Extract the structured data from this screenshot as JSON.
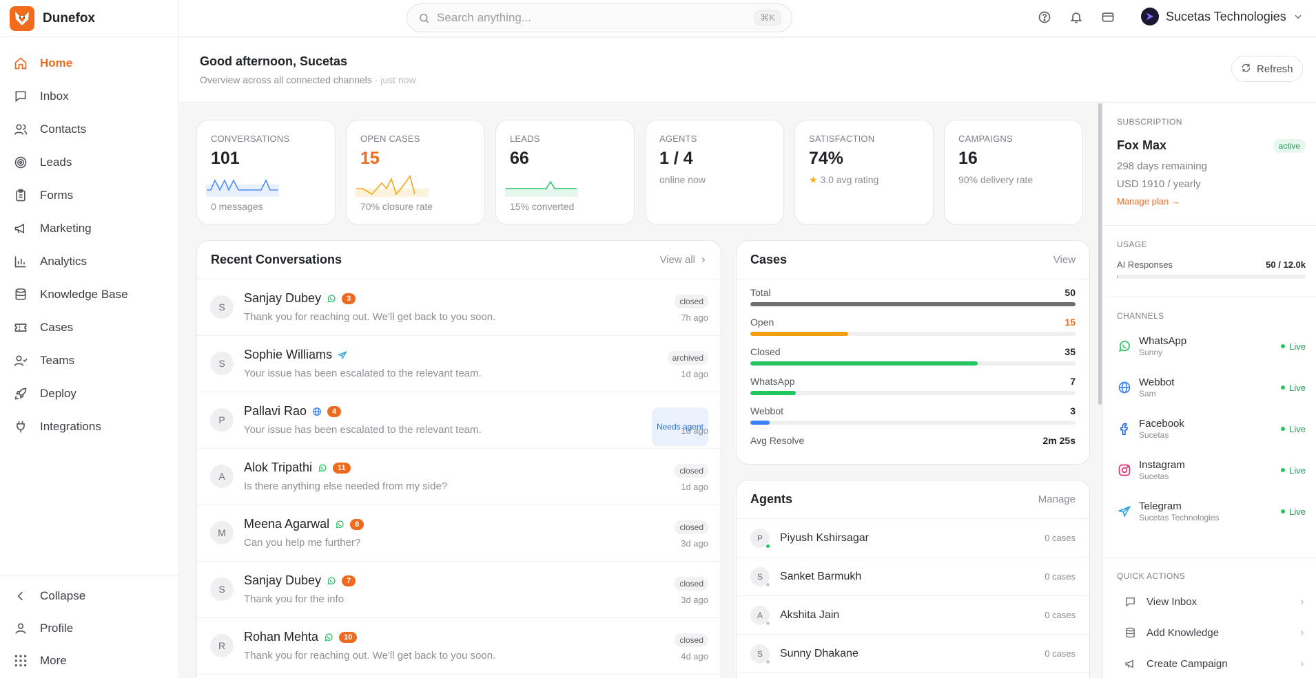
{
  "app": {
    "name": "Dunefox"
  },
  "sidebar": {
    "items": [
      {
        "label": "Home",
        "icon": "home-icon"
      },
      {
        "label": "Inbox",
        "icon": "message-icon"
      },
      {
        "label": "Contacts",
        "icon": "users-icon"
      },
      {
        "label": "Leads",
        "icon": "target-icon"
      },
      {
        "label": "Forms",
        "icon": "clipboard-icon"
      },
      {
        "label": "Marketing",
        "icon": "megaphone-icon"
      },
      {
        "label": "Analytics",
        "icon": "bar-chart-icon"
      },
      {
        "label": "Knowledge Base",
        "icon": "database-icon"
      },
      {
        "label": "Cases",
        "icon": "ticket-icon"
      },
      {
        "label": "Teams",
        "icon": "team-icon"
      },
      {
        "label": "Deploy",
        "icon": "rocket-icon"
      },
      {
        "label": "Integrations",
        "icon": "plug-icon"
      }
    ],
    "footer": [
      {
        "label": "Collapse",
        "icon": "chevron-left-icon"
      },
      {
        "label": "Profile",
        "icon": "user-icon"
      },
      {
        "label": "More",
        "icon": "grid-icon"
      }
    ]
  },
  "topbar": {
    "search_placeholder": "Search anything...",
    "shortcut": "⌘K",
    "org_name": "Sucetas Technologies"
  },
  "header": {
    "greeting": "Good afternoon, Sucetas",
    "subtitle": "Overview across all connected channels",
    "updated": "· just now",
    "refresh_label": "Refresh"
  },
  "stats": [
    {
      "label": "CONVERSATIONS",
      "value": "101",
      "footer": "0 messages",
      "spark_color": "#4c8ef7"
    },
    {
      "label": "OPEN CASES",
      "value": "15",
      "footer": "70% closure rate",
      "spark_color": "#f0a818"
    },
    {
      "label": "LEADS",
      "value": "66",
      "footer": "15% converted",
      "spark_color": "#2cc36b"
    },
    {
      "label": "AGENTS",
      "value": "1 / 4",
      "sub": "online now"
    },
    {
      "label": "SATISFACTION",
      "value": "74%",
      "sub": "3.0 avg rating"
    },
    {
      "label": "CAMPAIGNS",
      "value": "16",
      "sub": "90% delivery rate"
    }
  ],
  "recent": {
    "title": "Recent Conversations",
    "link": "View all",
    "items": [
      {
        "initial": "S",
        "name": "Sanjay Dubey",
        "channel": "whatsapp",
        "badge": "3",
        "message": "Thank you for reaching out. We'll get back to you soon.",
        "status": "closed",
        "time": "7h ago"
      },
      {
        "initial": "S",
        "name": "Sophie Williams",
        "channel": "telegram",
        "badge": "",
        "message": "Your issue has been escalated to the relevant team.",
        "status": "archived",
        "time": "1d ago"
      },
      {
        "initial": "P",
        "name": "Pallavi Rao",
        "channel": "web",
        "badge": "4",
        "message": "Your issue has been escalated to the relevant team.",
        "status": "Needs agent",
        "time": "1d ago"
      },
      {
        "initial": "A",
        "name": "Alok Tripathi",
        "channel": "whatsapp",
        "badge": "11",
        "message": "Is there anything else needed from my side?",
        "status": "closed",
        "time": "1d ago"
      },
      {
        "initial": "M",
        "name": "Meena Agarwal",
        "channel": "whatsapp",
        "badge": "8",
        "message": "Can you help me further?",
        "status": "closed",
        "time": "3d ago"
      },
      {
        "initial": "S",
        "name": "Sanjay Dubey",
        "channel": "whatsapp",
        "badge": "7",
        "message": "Thank you for the info",
        "status": "closed",
        "time": "3d ago"
      },
      {
        "initial": "R",
        "name": "Rohan Mehta",
        "channel": "whatsapp",
        "badge": "10",
        "message": "Thank you for reaching out. We'll get back to you soon.",
        "status": "closed",
        "time": "4d ago"
      }
    ]
  },
  "cases": {
    "title": "Cases",
    "link": "View",
    "rows": [
      {
        "label": "Total",
        "value": "50",
        "fraction": 1.0,
        "color": "#6e6e72"
      },
      {
        "label": "Open",
        "value": "15",
        "fraction": 0.3,
        "color": "#f29f12"
      },
      {
        "label": "Closed",
        "value": "35",
        "fraction": 0.7,
        "color": "#22c55e"
      },
      {
        "label": "WhatsApp",
        "value": "7",
        "fraction": 0.14,
        "color": "#22c55e"
      },
      {
        "label": "Webbot",
        "value": "3",
        "fraction": 0.06,
        "color": "#3b82f6"
      }
    ],
    "resolve_label": "Avg Resolve",
    "resolve_value": "2m 25s"
  },
  "agents": {
    "title": "Agents",
    "link": "Manage",
    "items": [
      {
        "initial": "P",
        "name": "Piyush Kshirsagar",
        "cases": "0 cases",
        "online": true
      },
      {
        "initial": "S",
        "name": "Sanket Barmukh",
        "cases": "0 cases",
        "online": false
      },
      {
        "initial": "A",
        "name": "Akshita Jain",
        "cases": "0 cases",
        "online": false
      },
      {
        "initial": "S",
        "name": "Sunny Dhakane",
        "cases": "0 cases",
        "online": false
      }
    ]
  },
  "subscription": {
    "label": "SUBSCRIPTION",
    "plan": "Fox Max",
    "status": "active",
    "remaining": "298 days remaining",
    "price": "USD 1910 / yearly",
    "manage": "Manage plan →"
  },
  "usage": {
    "label": "USAGE",
    "name": "AI Responses",
    "value": "50 / 12.0k",
    "fraction": 0.004
  },
  "channels": {
    "label": "CHANNELS",
    "items": [
      {
        "name": "WhatsApp",
        "sub": "Sunny",
        "status": "Live",
        "icon": "whatsapp-icon"
      },
      {
        "name": "Webbot",
        "sub": "Sam",
        "status": "Live",
        "icon": "globe-icon"
      },
      {
        "name": "Facebook",
        "sub": "Sucetas",
        "status": "Live",
        "icon": "facebook-icon"
      },
      {
        "name": "Instagram",
        "sub": "Sucetas",
        "status": "Live",
        "icon": "instagram-icon"
      },
      {
        "name": "Telegram",
        "sub": "Sucetas Technologies",
        "status": "Live",
        "icon": "telegram-icon"
      }
    ]
  },
  "quick_actions": {
    "label": "QUICK ACTIONS",
    "items": [
      {
        "label": "View Inbox",
        "icon": "message-icon"
      },
      {
        "label": "Add Knowledge",
        "icon": "database-icon"
      },
      {
        "label": "Create Campaign",
        "icon": "megaphone-icon"
      }
    ]
  },
  "colors": {
    "accent": "#ee6a1f",
    "live": "#1f9d55",
    "link_blue": "#2f6fd6"
  }
}
